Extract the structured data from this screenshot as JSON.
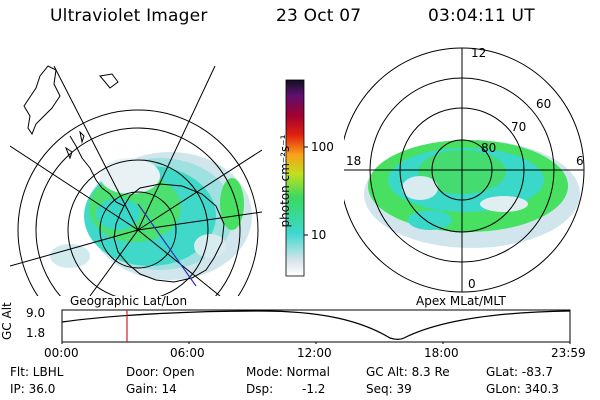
{
  "header": {
    "title": "Ultraviolet Imager",
    "date": "23 Oct 07",
    "time": "03:04:11 UT"
  },
  "left_map": {
    "caption": "Geographic Lat/Lon"
  },
  "right_map": {
    "caption": "Apex MLat/MLT",
    "mlt_labels": [
      "12",
      "18",
      "6",
      "0"
    ],
    "lat_labels": [
      "60",
      "70",
      "80"
    ]
  },
  "colorbar": {
    "label": "photon cm⁻²s⁻¹",
    "ticks": [
      "100",
      "10"
    ]
  },
  "altitude_plot": {
    "ylabel": "GC Alt",
    "yticks": [
      "9.0",
      "1.8"
    ],
    "xticks": [
      "00:00",
      "06:00",
      "12:00",
      "18:00",
      "23:59"
    ],
    "marker_time_hours": 3.07,
    "minimum_time_hours": 15.5
  },
  "info": {
    "flt": "Flt: LBHL",
    "ip": "IP: 36.0",
    "door": "Door: Open",
    "gain": "Gain: 14",
    "mode": "Mode: Normal",
    "dsp_label": "Dsp:",
    "dsp_value": "-1.2",
    "gcalt": "GC Alt: 8.3 Re",
    "seq": "Seq: 39",
    "glat": "GLat: -83.7",
    "glon": "GLon: 340.3"
  },
  "colors": {
    "aurora_cyan": "#38d8c8",
    "aurora_green": "#48e060",
    "aurora_light": "#c8e4ea",
    "marker_red": "#cc2020",
    "meridian_blue": "#3030c0"
  }
}
